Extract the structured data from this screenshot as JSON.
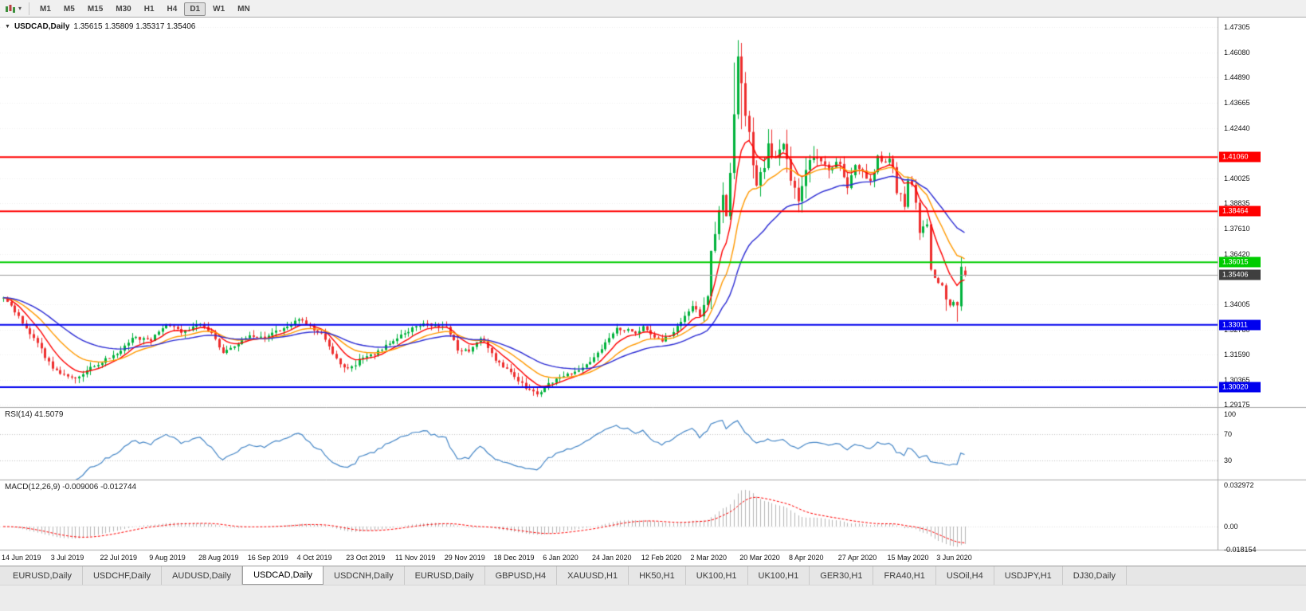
{
  "toolbar": {
    "timeframes": [
      "M1",
      "M5",
      "M15",
      "M30",
      "H1",
      "H4",
      "D1",
      "W1",
      "MN"
    ],
    "active": "D1"
  },
  "chart": {
    "symbol": "USDCAD,Daily",
    "ohlc_text": "1.35615 1.35809 1.35317 1.35406",
    "bid": 1.35406,
    "bid_label_bg": "#3f3f3f",
    "price_ticks": [
      1.47305,
      1.4608,
      1.4489,
      1.43665,
      1.4244,
      1.40025,
      1.38835,
      1.3761,
      1.3642,
      1.34005,
      1.3278,
      1.3159,
      1.30365,
      1.29175
    ],
    "hlines": [
      {
        "value": 1.4106,
        "color": "#ff0000"
      },
      {
        "value": 1.38464,
        "color": "#ff0000"
      },
      {
        "value": 1.36015,
        "color": "#00cc00"
      },
      {
        "value": 1.33011,
        "color": "#0000ee"
      },
      {
        "value": 1.3002,
        "color": "#0000ee"
      }
    ],
    "dates": [
      "14 Jun 2019",
      "3 Jul 2019",
      "22 Jul 2019",
      "9 Aug 2019",
      "28 Aug 2019",
      "16 Sep 2019",
      "4 Oct 2019",
      "23 Oct 2019",
      "11 Nov 2019",
      "29 Nov 2019",
      "18 Dec 2019",
      "6 Jan 2020",
      "24 Jan 2020",
      "12 Feb 2020",
      "2 Mar 2020",
      "20 Mar 2020",
      "8 Apr 2020",
      "27 Apr 2020",
      "15 May 2020",
      "3 Jun 2020"
    ],
    "colors": {
      "up": "#00b23c",
      "down": "#ee2e2e",
      "grid": "#f0f0f0",
      "bid_line": "#9b9b9b"
    }
  },
  "indicators": {
    "rsi": {
      "label": "RSI(14) 41.5079",
      "period": 14,
      "value": 41.5079,
      "levels": [
        100,
        70,
        30
      ],
      "color": "#4687c7",
      "level_line_color": "#c4c4c4"
    },
    "macd": {
      "label": "MACD(12,26,9) -0.009006 -0.012744",
      "fast": 12,
      "slow": 26,
      "signal": 9,
      "main_value": -0.009006,
      "signal_value": -0.012744,
      "scale_ticks": [
        "0.032972",
        "0.00",
        "-0.018154"
      ],
      "scale_values": [
        0.032972,
        0,
        -0.018154
      ],
      "hist_color": "#b5b5b5",
      "signal_color": "#ff0000"
    }
  },
  "tabs": {
    "items": [
      "EURUSD,Daily",
      "USDCHF,Daily",
      "AUDUSD,Daily",
      "USDCAD,Daily",
      "USDCNH,Daily",
      "EURUSD,Daily",
      "GBPUSD,H4",
      "XAUUSD,H1",
      "HK50,H1",
      "UK100,H1",
      "UK100,H1",
      "GER30,H1",
      "FRA40,H1",
      "USOil,H4",
      "USDJPY,H1",
      "DJ30,Daily"
    ],
    "active_index": 3
  },
  "chart_data": {
    "type": "candlestick",
    "symbol": "USDCAD",
    "timeframe": "Daily",
    "x_range": [
      "14 Jun 2019",
      "12 Jun 2020"
    ],
    "y_range": [
      1.29175,
      1.47305
    ],
    "last_ohlc": {
      "o": 1.35615,
      "h": 1.35809,
      "l": 1.35317,
      "c": 1.35406
    },
    "extreme_high": 1.4668,
    "candle_count": 255,
    "labels_every": 13,
    "seed": 420,
    "base_amp": 0.0018,
    "volatility": [
      {
        "from": 185,
        "to": 215,
        "amp": 0.005
      },
      {
        "from": 216,
        "to": 244,
        "amp": 0.0028
      },
      {
        "from": 245,
        "to": 254,
        "amp": 0.0008
      }
    ],
    "close_anchors": [
      [
        0,
        1.3425
      ],
      [
        2,
        1.3395
      ],
      [
        4,
        1.3335
      ],
      [
        6,
        1.329
      ],
      [
        9,
        1.3215
      ],
      [
        13,
        1.3085
      ],
      [
        17,
        1.3062
      ],
      [
        20,
        1.3045
      ],
      [
        23,
        1.3095
      ],
      [
        26,
        1.3125
      ],
      [
        30,
        1.3155
      ],
      [
        34,
        1.3235
      ],
      [
        39,
        1.323
      ],
      [
        43,
        1.331
      ],
      [
        47,
        1.3268
      ],
      [
        52,
        1.33
      ],
      [
        55,
        1.3258
      ],
      [
        58,
        1.3165
      ],
      [
        61,
        1.319
      ],
      [
        65,
        1.3255
      ],
      [
        69,
        1.3235
      ],
      [
        74,
        1.3285
      ],
      [
        78,
        1.333
      ],
      [
        81,
        1.3295
      ],
      [
        84,
        1.3255
      ],
      [
        87,
        1.3155
      ],
      [
        91,
        1.3085
      ],
      [
        94,
        1.313
      ],
      [
        98,
        1.3165
      ],
      [
        101,
        1.32
      ],
      [
        104,
        1.3235
      ],
      [
        108,
        1.3285
      ],
      [
        112,
        1.3305
      ],
      [
        115,
        1.3295
      ],
      [
        117,
        1.329
      ],
      [
        120,
        1.3185
      ],
      [
        123,
        1.3175
      ],
      [
        126,
        1.324
      ],
      [
        128,
        1.3195
      ],
      [
        130,
        1.3125
      ],
      [
        133,
        1.3085
      ],
      [
        136,
        1.3035
      ],
      [
        139,
        1.2985
      ],
      [
        141,
        1.2962
      ],
      [
        143,
        1.3
      ],
      [
        146,
        1.3045
      ],
      [
        149,
        1.3058
      ],
      [
        152,
        1.3075
      ],
      [
        156,
        1.314
      ],
      [
        159,
        1.321
      ],
      [
        162,
        1.3285
      ],
      [
        165,
        1.3278
      ],
      [
        167,
        1.3255
      ],
      [
        169,
        1.329
      ],
      [
        171,
        1.326
      ],
      [
        174,
        1.3225
      ],
      [
        177,
        1.327
      ],
      [
        180,
        1.334
      ],
      [
        182,
        1.34
      ],
      [
        184,
        1.335
      ],
      [
        186,
        1.343
      ],
      [
        187,
        1.366
      ],
      [
        188,
        1.372
      ],
      [
        189,
        1.386
      ],
      [
        190,
        1.3945
      ],
      [
        191,
        1.381
      ],
      [
        192,
        1.403
      ],
      [
        193,
        1.429
      ],
      [
        194,
        1.46
      ],
      [
        195,
        1.4445
      ],
      [
        196,
        1.431
      ],
      [
        197,
        1.421
      ],
      [
        198,
        1.406
      ],
      [
        199,
        1.3985
      ],
      [
        200,
        1.4015
      ],
      [
        201,
        1.406
      ],
      [
        202,
        1.4185
      ],
      [
        203,
        1.4125
      ],
      [
        204,
        1.409
      ],
      [
        206,
        1.416
      ],
      [
        208,
        1.4005
      ],
      [
        210,
        1.3895
      ],
      [
        212,
        1.4045
      ],
      [
        214,
        1.4105
      ],
      [
        216,
        1.4085
      ],
      [
        218,
        1.4035
      ],
      [
        220,
        1.409
      ],
      [
        221,
        1.4075
      ],
      [
        223,
        1.3955
      ],
      [
        225,
        1.4075
      ],
      [
        227,
        1.4035
      ],
      [
        229,
        1.3985
      ],
      [
        231,
        1.4105
      ],
      [
        233,
        1.408
      ],
      [
        234,
        1.411
      ],
      [
        235,
        1.4055
      ],
      [
        236,
        1.3935
      ],
      [
        237,
        1.393
      ],
      [
        238,
        1.3875
      ],
      [
        239,
        1.399
      ],
      [
        240,
        1.398
      ],
      [
        241,
        1.3885
      ],
      [
        242,
        1.3755
      ],
      [
        243,
        1.377
      ],
      [
        244,
        1.378
      ],
      [
        245,
        1.3565
      ],
      [
        246,
        1.3525
      ],
      [
        247,
        1.35
      ],
      [
        248,
        1.349
      ],
      [
        249,
        1.3425
      ],
      [
        250,
        1.3395
      ],
      [
        251,
        1.341
      ],
      [
        252,
        1.3395
      ],
      [
        253,
        1.358
      ],
      [
        254,
        1.35406
      ]
    ],
    "overrides": {
      "193": {
        "h": 1.456
      },
      "194": {
        "h": 1.4668
      },
      "195": {
        "l": 1.424
      },
      "249": {
        "l": 1.3368
      },
      "252": {
        "l": 1.3316
      },
      "253": {
        "o": 1.339,
        "h": 1.3625,
        "l": 1.3368,
        "c": 1.358
      },
      "254": {
        "o": 1.35615,
        "h": 1.35809,
        "l": 1.35317,
        "c": 1.35406
      }
    },
    "ma": [
      {
        "period": 8,
        "type": "ema",
        "color": "#ff0000"
      },
      {
        "period": 17,
        "type": "ema",
        "color": "#ff9900"
      },
      {
        "period": 34,
        "type": "ema",
        "color": "#2b2bd4"
      }
    ]
  }
}
